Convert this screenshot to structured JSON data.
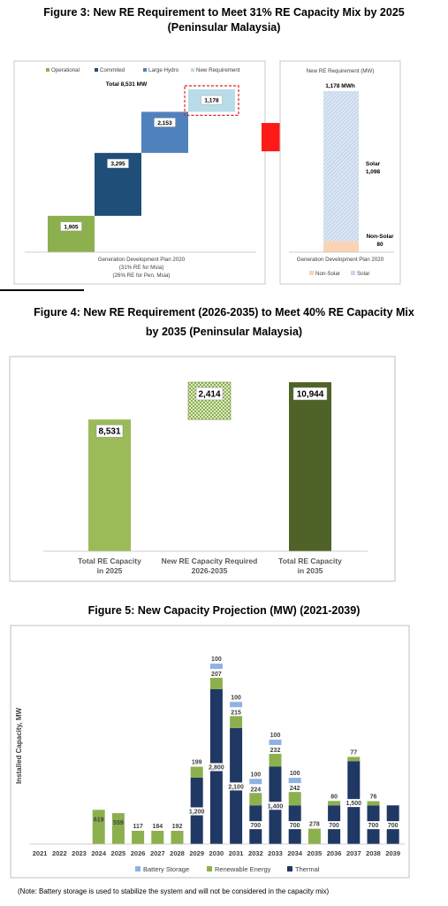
{
  "fig3": {
    "title_line1": "Figure 3: New RE Requirement to Meet 31% RE Capacity Mix by 2025",
    "title_line2": "(Peninsular Malaysia)",
    "legend": [
      "Operational",
      "Commited",
      "Large Hydro",
      "New Requirement"
    ],
    "total_label": "Total 8,531 MW",
    "xlabel_lines": [
      "Generation Development Plan 2020",
      "(31% RE for Msia)",
      "(26% RE for Pen. Msia)"
    ],
    "colors": {
      "operational": "#8db04e",
      "commited": "#1f4e79",
      "large_hydro": "#4f81bd",
      "new_requirement": "#b8dce8",
      "arrow": "#ff1a1a"
    }
  },
  "fig3_right": {
    "title": "New RE Requirement (MW)",
    "total_label": "1,178 MWh",
    "solar_label": "Solar",
    "solar_value": "1,098",
    "nonsolar_label": "Non-Solar",
    "nonsolar_value": "80",
    "xlabel": "Generation Development Plan 2020",
    "legend": [
      "Non-Solar",
      "Solar"
    ]
  },
  "fig4": {
    "title_line1": "Figure 4: New RE Requirement (2026-2035) to Meet 40% RE Capacity Mix",
    "title_line2": "by 2035 (Peninsular Malaysia)"
  },
  "fig5": {
    "title": "Figure 5: New Capacity Projection (MW) (2021-2039)",
    "ylabel": "Installed Capacity, MW",
    "legend": [
      "Battery Storage",
      "Renewable Energy",
      "Thermal"
    ]
  },
  "note": "(Note: Battery storage is used to stabilize the system and will not be considered in the capacity mix)",
  "chart_data": [
    {
      "type": "bar",
      "title": "Figure 3: New RE Requirement to Meet 31% RE Capacity Mix by 2025",
      "subtype": "waterfall",
      "categories": [
        "Operational",
        "Commited",
        "Large Hydro",
        "New Requirement"
      ],
      "values": [
        1905,
        3295,
        2153,
        1178
      ],
      "value_labels": [
        "1,905",
        "3,295",
        "2,153",
        "1,178"
      ],
      "total": 8531,
      "ylim": [
        0,
        8531
      ]
    },
    {
      "type": "bar",
      "title": "New RE Requirement (MW)",
      "subtype": "stacked",
      "categories": [
        "Generation Development Plan 2020"
      ],
      "series": [
        {
          "name": "Non-Solar",
          "values": [
            80
          ]
        },
        {
          "name": "Solar",
          "values": [
            1098
          ]
        }
      ],
      "total": 1178
    },
    {
      "type": "bar",
      "title": "Figure 4: New RE Requirement (2026-2035) to Meet 40% RE Capacity Mix by 2035 (Peninsular Malaysia)",
      "subtype": "waterfall",
      "categories": [
        [
          "Total RE Capacity",
          "in 2025"
        ],
        [
          "New RE Capacity Required",
          "2026-2035"
        ],
        [
          "Total RE Capacity",
          "in 2035"
        ]
      ],
      "values": [
        8531,
        2414,
        10944
      ],
      "value_labels": [
        "8,531",
        "2,414",
        "10,944"
      ],
      "ylim": [
        0,
        12000
      ],
      "colors": [
        "#9bbb59",
        "#8db04e",
        "#4f6228"
      ]
    },
    {
      "type": "bar",
      "title": "Figure 5: New Capacity Projection (MW) (2021-2039)",
      "subtype": "stacked",
      "ylabel": "Installed Capacity, MW",
      "categories": [
        "2021",
        "2022",
        "2023",
        "2024",
        "2025",
        "2026",
        "2027",
        "2028",
        "2029",
        "2030",
        "2031",
        "2032",
        "2033",
        "2034",
        "2035",
        "2036",
        "2037",
        "2038",
        "2039"
      ],
      "series": [
        {
          "name": "Thermal",
          "values": [
            0,
            0,
            0,
            0,
            0,
            0,
            0,
            0,
            1200,
            2800,
            2100,
            700,
            1400,
            700,
            0,
            700,
            1500,
            700,
            700
          ],
          "labels": [
            "",
            "",
            "",
            "",
            "",
            "",
            "",
            "",
            "1,200",
            "2,800",
            "2,100",
            "700",
            "1,400",
            "700",
            "",
            "700",
            "1,500",
            "700",
            "700"
          ]
        },
        {
          "name": "Renewable Energy",
          "values": [
            0,
            0,
            0,
            619,
            559,
            117,
            184,
            192,
            199,
            207,
            215,
            224,
            232,
            242,
            278,
            80,
            77,
            76,
            0
          ],
          "labels": [
            "",
            "",
            "",
            "619",
            "559",
            "117",
            "184",
            "192",
            "199",
            "207",
            "215",
            "224",
            "232",
            "242",
            "278",
            "80",
            "77",
            "76",
            ""
          ]
        },
        {
          "name": "Battery Storage",
          "values": [
            0,
            0,
            0,
            0,
            0,
            0,
            0,
            0,
            0,
            100,
            100,
            100,
            100,
            100,
            0,
            0,
            0,
            0,
            0
          ],
          "labels": [
            "",
            "",
            "",
            "",
            "",
            "",
            "",
            "",
            "",
            "100",
            "100",
            "100",
            "100",
            "100",
            "",
            "",
            "",
            "",
            ""
          ]
        }
      ],
      "colors": {
        "Thermal": "#1f3864",
        "Renewable Energy": "#8db04e",
        "Battery Storage": "#8db3e2"
      },
      "legend_position": "bottom"
    }
  ]
}
